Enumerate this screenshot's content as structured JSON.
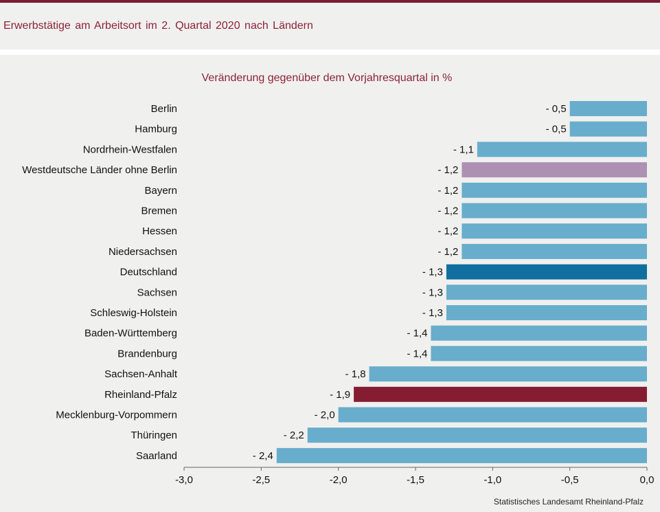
{
  "header": {
    "title": "Erwerbstätige  am Arbeitsort  im 2. Quartal  2020 nach Ländern"
  },
  "footer": {
    "source": "Statistisches Landesamt  Rheinland-Pfalz"
  },
  "colors": {
    "default": "#68adcb",
    "west_without_berlin": "#ad91b2",
    "germany": "#0f6f9f",
    "rheinland_pfalz": "#861c32",
    "accent": "#8b2336"
  },
  "chart_data": {
    "type": "bar",
    "orientation": "horizontal",
    "title": "Veränderung gegenüber dem Vorjahresquartal in %",
    "categories": [
      "Berlin",
      "Hamburg",
      "Nordrhein-Westfalen",
      "Westdeutsche Länder ohne Berlin",
      "Bayern",
      "Bremen",
      "Hessen",
      "Niedersachsen",
      "Deutschland",
      "Sachsen",
      "Schleswig-Holstein",
      "Baden-Württemberg",
      "Brandenburg",
      "Sachsen-Anhalt",
      "Rheinland-Pfalz",
      "Mecklenburg-Vorpommern",
      "Thüringen",
      "Saarland"
    ],
    "values": [
      -0.5,
      -0.5,
      -1.1,
      -1.2,
      -1.2,
      -1.2,
      -1.2,
      -1.2,
      -1.3,
      -1.3,
      -1.3,
      -1.4,
      -1.4,
      -1.8,
      -1.9,
      -2.0,
      -2.2,
      -2.4
    ],
    "labels": [
      "- 0,5",
      "- 0,5",
      "- 1,1",
      "- 1,2",
      "- 1,2",
      "- 1,2",
      "- 1,2",
      "- 1,2",
      "- 1,3",
      "- 1,3",
      "- 1,3",
      "- 1,4",
      "- 1,4",
      "- 1,8",
      "- 1,9",
      "- 2,0",
      "- 2,2",
      "- 2,4"
    ],
    "bar_colors": [
      "default",
      "default",
      "default",
      "west_without_berlin",
      "default",
      "default",
      "default",
      "default",
      "germany",
      "default",
      "default",
      "default",
      "default",
      "default",
      "rheinland_pfalz",
      "default",
      "default",
      "default"
    ],
    "xlim": [
      -3.0,
      0.0
    ],
    "xticks": [
      -3.0,
      -2.5,
      -2.0,
      -1.5,
      -1.0,
      -0.5,
      0.0
    ],
    "xtick_labels": [
      "-3,0",
      "-2,5",
      "-2,0",
      "-1,5",
      "-1,0",
      "-0,5",
      "0,0"
    ],
    "xlabel": "",
    "ylabel": "",
    "grid": false,
    "legend": "none"
  }
}
